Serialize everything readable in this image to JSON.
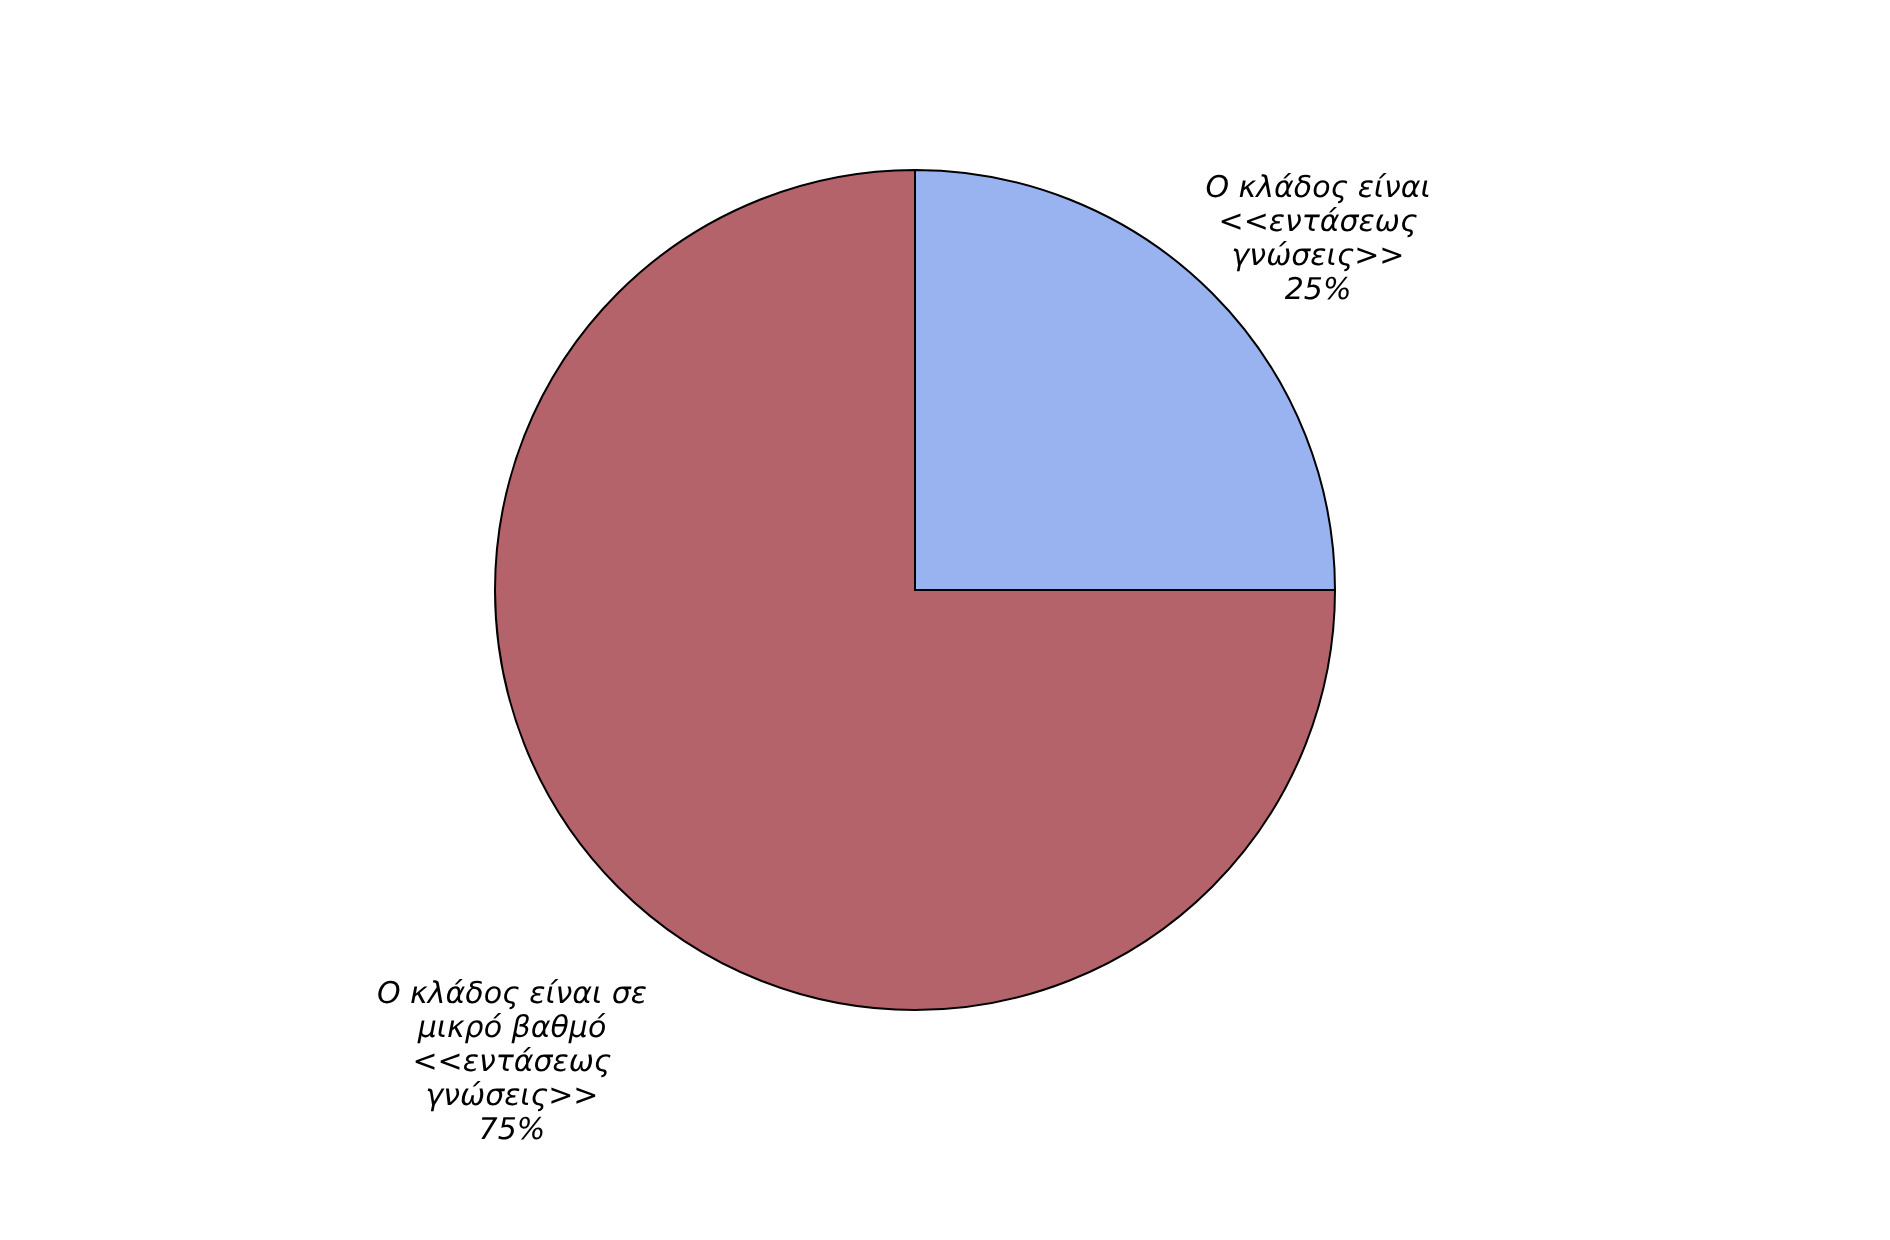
{
  "chart_data": {
    "type": "pie",
    "categories": [
      "Ο κλάδος είναι <<εντάσεως γνώσεις>>",
      "Ο κλάδος είναι σε μικρό βαθμό <<εντάσεως γνώσεις>>"
    ],
    "values": [
      25,
      75
    ],
    "colors": [
      "#99b3f0",
      "#b5636b"
    ],
    "value_labels": [
      "25%",
      "75%"
    ],
    "legend": false
  }
}
